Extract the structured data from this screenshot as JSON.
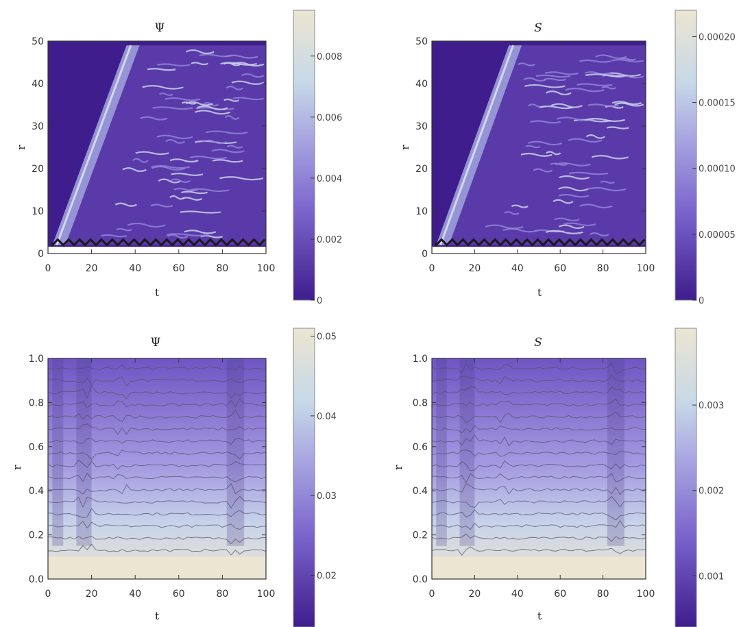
{
  "chart_data": [
    {
      "type": "heatmap",
      "title": "Ψ",
      "title_style": "serif-upright",
      "xlabel": "t",
      "ylabel": "r",
      "xlim": [
        0,
        100
      ],
      "ylim": [
        0,
        50
      ],
      "xticks": [
        0,
        20,
        40,
        60,
        80,
        100
      ],
      "yticks": [
        0,
        10,
        20,
        30,
        40,
        50
      ],
      "colorbar": {
        "min": 0,
        "max": 0.0095,
        "ticks": [
          "0",
          "0.002",
          "0.004",
          "0.006",
          "0.008"
        ],
        "tick_values": [
          0,
          0.002,
          0.004,
          0.006,
          0.008
        ]
      },
      "pattern": "front",
      "contours": true
    },
    {
      "type": "heatmap",
      "title": "S",
      "title_style": "serif-italic",
      "xlabel": "t",
      "ylabel": "r",
      "xlim": [
        0,
        100
      ],
      "ylim": [
        0,
        50
      ],
      "xticks": [
        0,
        20,
        40,
        60,
        80,
        100
      ],
      "yticks": [
        0,
        10,
        20,
        30,
        40,
        50
      ],
      "colorbar": {
        "min": 0,
        "max": 0.00022,
        "ticks": [
          "0",
          "0.00005",
          "0.00010",
          "0.00015",
          "0.00020"
        ],
        "tick_values": [
          0,
          5e-05,
          0.0001,
          0.00015,
          0.0002
        ]
      },
      "pattern": "front",
      "contours": true
    },
    {
      "type": "heatmap",
      "title": "Ψ",
      "title_style": "serif-upright",
      "xlabel": "t",
      "ylabel": "r",
      "xlim": [
        0,
        100
      ],
      "ylim": [
        0,
        1.0
      ],
      "xticks": [
        0,
        20,
        40,
        60,
        80,
        100
      ],
      "yticks": [
        0.0,
        0.2,
        0.4,
        0.6,
        0.8,
        1.0
      ],
      "ytick_labels": [
        "0.0",
        "0.2",
        "0.4",
        "0.6",
        "0.8",
        "1.0"
      ],
      "colorbar": {
        "min": 0.0135,
        "max": 0.051,
        "ticks": [
          "0.02",
          "0.03",
          "0.04",
          "0.05"
        ],
        "tick_values": [
          0.02,
          0.03,
          0.04,
          0.05
        ]
      },
      "pattern": "layers",
      "contours": true
    },
    {
      "type": "heatmap",
      "title": "S",
      "title_style": "serif-italic",
      "xlabel": "t",
      "ylabel": "r",
      "xlim": [
        0,
        100
      ],
      "ylim": [
        0,
        1.0
      ],
      "xticks": [
        0,
        20,
        40,
        60,
        80,
        100
      ],
      "yticks": [
        0.0,
        0.2,
        0.4,
        0.6,
        0.8,
        1.0
      ],
      "ytick_labels": [
        "0.0",
        "0.2",
        "0.4",
        "0.6",
        "0.8",
        "1.0"
      ],
      "colorbar": {
        "min": 0.0004,
        "max": 0.0039,
        "ticks": [
          "0.001",
          "0.002",
          "0.003"
        ],
        "tick_values": [
          0.001,
          0.002,
          0.003
        ]
      },
      "pattern": "layers",
      "contours": true
    }
  ],
  "colors": {
    "low": "#3f1d8c",
    "mid": "#8a79d6",
    "high": "#eae3cf",
    "frame": "#333333"
  }
}
